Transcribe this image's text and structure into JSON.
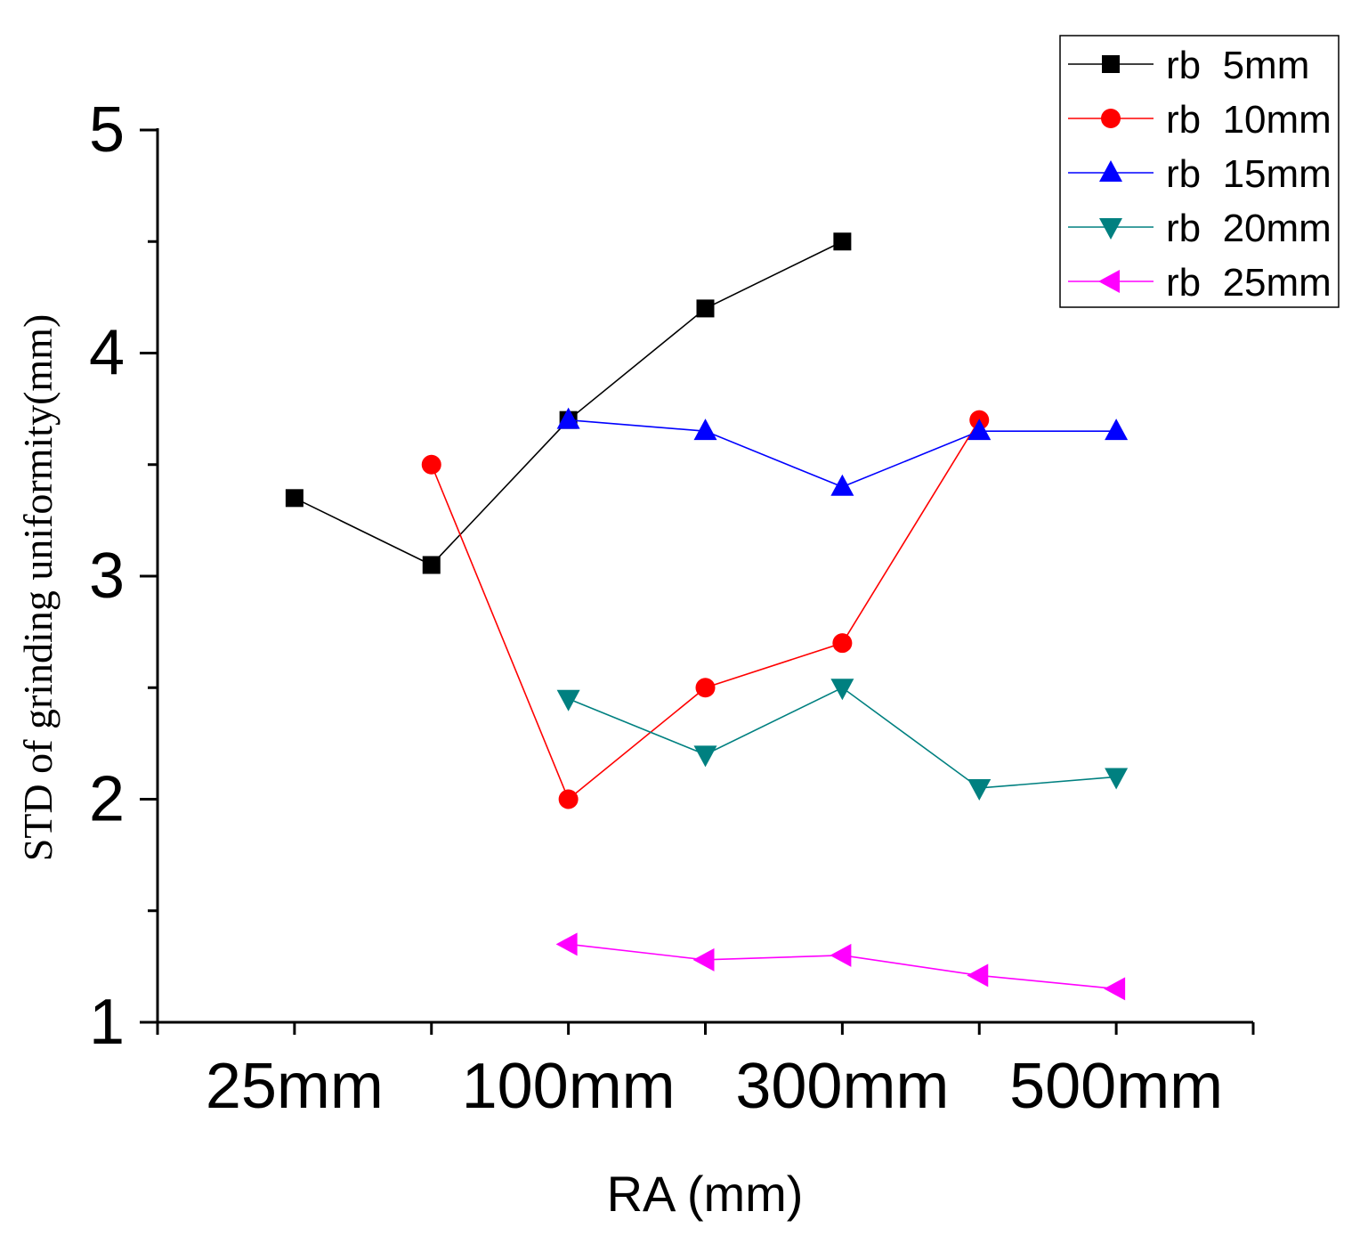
{
  "chart_data": {
    "type": "line",
    "title": "",
    "xlabel": "RA (mm)",
    "ylabel": "STD of grinding uniformity(mm)",
    "x": [
      1,
      2,
      3,
      4,
      5,
      6,
      7
    ],
    "x_tick_labels": [
      {
        "x": 1,
        "label": "25mm"
      },
      {
        "x": 3,
        "label": "100mm"
      },
      {
        "x": 5,
        "label": "300mm"
      },
      {
        "x": 7,
        "label": "500mm"
      }
    ],
    "xlim": [
      0,
      8
    ],
    "ylim": [
      1,
      5
    ],
    "y_ticks": [
      1,
      2,
      3,
      4,
      5
    ],
    "y_tick_labels": [
      "1",
      "2",
      "3",
      "4",
      "5"
    ],
    "grid": false,
    "legend_position": "top-right",
    "series": [
      {
        "name": "rb  5mm",
        "color": "#000000",
        "marker": "square",
        "x": [
          1,
          2,
          3,
          4,
          5
        ],
        "values": [
          3.35,
          3.05,
          3.7,
          4.2,
          4.5
        ]
      },
      {
        "name": "rb  10mm",
        "color": "#ff0000",
        "marker": "circle",
        "x": [
          2,
          3,
          4,
          5,
          6
        ],
        "values": [
          3.5,
          2.0,
          2.5,
          2.7,
          3.7
        ]
      },
      {
        "name": "rb  15mm",
        "color": "#0000ff",
        "marker": "triangle-up",
        "x": [
          3,
          4,
          5,
          6,
          7
        ],
        "values": [
          3.7,
          3.65,
          3.4,
          3.65,
          3.65
        ]
      },
      {
        "name": "rb  20mm",
        "color": "#008080",
        "marker": "triangle-down",
        "x": [
          3,
          4,
          5,
          6,
          7
        ],
        "values": [
          2.45,
          2.2,
          2.5,
          2.05,
          2.1
        ]
      },
      {
        "name": "rb  25mm",
        "color": "#ff00ff",
        "marker": "triangle-left",
        "x": [
          3,
          4,
          5,
          6,
          7
        ],
        "values": [
          1.35,
          1.28,
          1.3,
          1.21,
          1.15
        ]
      }
    ]
  }
}
